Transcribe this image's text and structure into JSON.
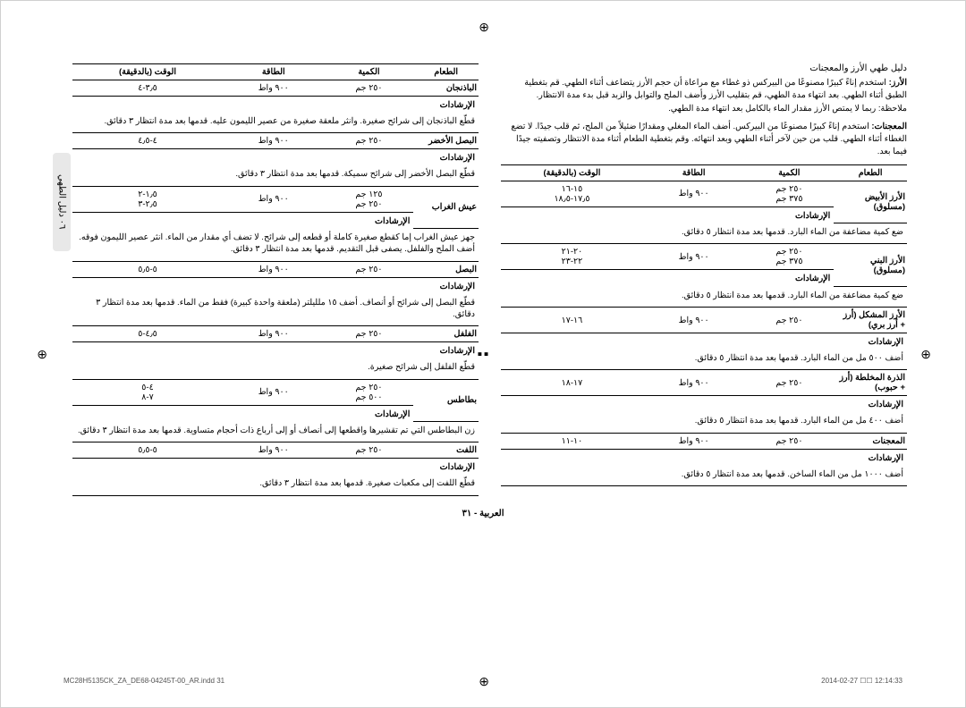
{
  "meta": {
    "doc_header": "دليل طهي الأرز والمعجنات",
    "side_tab": "٠٦ دليل الطهي",
    "page_number": "العربية - ٣١",
    "footer_left": "MC28H5135CK_ZA_DE68-04245T-00_AR.indd   31",
    "footer_right": "2014-02-27  ☐☐ 12:14:33"
  },
  "common": {
    "headers": [
      "الطعام",
      "الكمية",
      "الطاقة",
      "الوقت (بالدقيقة)"
    ],
    "instr_label": "الإرشادات"
  },
  "table_right": {
    "rows": [
      {
        "food": "الباذنجان",
        "qty": [
          "٢٥٠ جم"
        ],
        "power": [
          "٩٠٠ واط"
        ],
        "time": [
          "٣٫٥-٤"
        ],
        "instr": "قطّع الباذنجان إلى شرائح صغيرة. وانثر ملعقة صغيرة من عصير الليمون عليه. قدمها بعد مدة انتظار ٣ دقائق."
      },
      {
        "food": "البصل الأخضر",
        "qty": [
          "٢٥٠ جم"
        ],
        "power": [
          "٩٠٠ واط"
        ],
        "time": [
          "٤-٤٫٥"
        ],
        "instr": "قطّع البصل الأخضر إلى شرائح سميكة. قدمها بعد مدة انتظار ٣ دقائق."
      },
      {
        "food": "عيش الغراب",
        "qty": [
          "١٢٥ جم",
          "٢٥٠ جم"
        ],
        "power": [
          "٩٠٠ واط"
        ],
        "time": [
          "١٫٥-٢",
          "٢٫٥-٣"
        ],
        "instr": "جهز عيش الغراب إما كقطع صغيرة كاملة أو قطعه إلى شرائح. لا تضف أي مقدار من الماء. انثر عصير الليمون فوقه. أضف الملح والفلفل. يصفى قبل التقديم. قدمها بعد مدة انتظار ٣ دقائق."
      },
      {
        "food": "البصل",
        "qty": [
          "٢٥٠ جم"
        ],
        "power": [
          "٩٠٠ واط"
        ],
        "time": [
          "٥-٥٫٥"
        ],
        "instr": "قطّع البصل إلى شرائح أو أنصاف. أضف ١٥ ملليلتر (ملعقة واحدة كبيرة) فقط من الماء. قدمها بعد مدة انتظار ٣ دقائق."
      },
      {
        "food": "الفلفل",
        "qty": [
          "٢٥٠ جم"
        ],
        "power": [
          "٩٠٠ واط"
        ],
        "time": [
          "٤٫٥-٥"
        ],
        "instr": "قطّع الفلفل إلى شرائح صغيرة."
      },
      {
        "food": "بطاطس",
        "qty": [
          "٢٥٠ جم",
          "٥٠٠ جم"
        ],
        "power": [
          "٩٠٠ واط"
        ],
        "time": [
          "٤-٥",
          "٧-٨"
        ],
        "instr": "زن البطاطس التي تم تقشيرها واقطعها إلى أنصاف أو إلى أرباع ذات أحجام متساوية. قدمها بعد مدة انتظار ٣ دقائق."
      },
      {
        "food": "اللفت",
        "qty": [
          "٢٥٠ جم"
        ],
        "power": [
          "٩٠٠ واط"
        ],
        "time": [
          "٥-٥٫٥"
        ],
        "instr": "قطّع اللفت إلى مكعبات صغيرة. قدمها بعد مدة انتظار ٣ دقائق."
      }
    ]
  },
  "intro": {
    "rice_label": "الأرز:",
    "rice_text": "استخدم إناءً كبيرًا مصنوعًا من البيركس ذو غطاء مع مراعاة أن حجم الأرز يتضاعف أثناء الطهي. قم بتغطية الطبق أثناء الطهي. بعد انتهاء مدة الطهي، قم بتقليب الأرز وأضف الملح والتوابل والزبد قبل بدء مدة الانتظار.",
    "rice_note": "ملاحظة: ربما لا يمتص الأرز مقدار الماء بالكامل بعد انتهاء مدة الطهي.",
    "pasta_label": "المعجنات:",
    "pasta_text": "استخدم إناءً كبيرًا مصنوعًا من البيركس. أضف الماء المغلي ومقدارًا ضئيلاً من الملح، ثم قلب جيدًا. لا تضع الغطاء أثناء الطهي. قلب من حين لآخر أثناء الطهي وبعد انتهائه. وقم بتغطية الطعام أثناء مدة الانتظار وتصفيته جيدًا فيما بعد."
  },
  "table_left": {
    "rows": [
      {
        "food": "الأرز الأبيض (مسلوق)",
        "qty": [
          "٢٥٠ جم",
          "٣٧٥ جم"
        ],
        "power": [
          "٩٠٠ واط"
        ],
        "time": [
          "١٥-١٦",
          "١٧٫٥-١٨٫٥"
        ],
        "instr": "ضع كمية مضاعفة من الماء البارد. قدمها بعد مدة انتظار ٥ دقائق."
      },
      {
        "food": "الأرز البني (مسلوق)",
        "qty": [
          "٢٥٠ جم",
          "٣٧٥ جم"
        ],
        "power": [
          "٩٠٠ واط"
        ],
        "time": [
          "٢٠-٢١",
          "٢٢-٢٣"
        ],
        "instr": "ضع كمية مضاعفة من الماء البارد. قدمها بعد مدة انتظار ٥ دقائق."
      },
      {
        "food": "الأرز المشكل (أرز + أرز بري)",
        "qty": [
          "٢٥٠ جم"
        ],
        "power": [
          "٩٠٠ واط"
        ],
        "time": [
          "١٦-١٧"
        ],
        "instr": "أضف ٥٠٠ مل من الماء البارد. قدمها بعد مدة انتظار ٥ دقائق."
      },
      {
        "food": "الذرة المخلطة (أرز + حبوب)",
        "qty": [
          "٢٥٠ جم"
        ],
        "power": [
          "٩٠٠ واط"
        ],
        "time": [
          "١٧-١٨"
        ],
        "instr": "أضف ٤٠٠ مل من الماء البارد. قدمها بعد مدة انتظار ٥ دقائق."
      },
      {
        "food": "المعجنات",
        "qty": [
          "٢٥٠ جم"
        ],
        "power": [
          "٩٠٠ واط"
        ],
        "time": [
          "١٠-١١"
        ],
        "instr": "أضف ١٠٠٠ مل من الماء الساخن. قدمها بعد مدة انتظار ٥ دقائق."
      }
    ]
  }
}
